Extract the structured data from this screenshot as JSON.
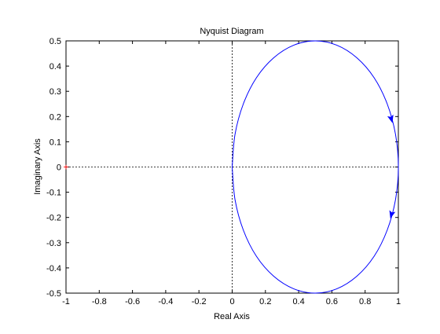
{
  "chart_data": {
    "type": "line",
    "title": "Nyquist Diagram",
    "x_label": "Real Axis",
    "y_label": "Imaginary Axis",
    "series": [
      {
        "color": "#0000ff",
        "x": [
          0,
          0.017,
          0.067,
          0.146,
          0.25,
          0.371,
          0.5,
          0.629,
          0.75,
          0.854,
          0.933,
          0.983,
          1,
          0.983,
          0.933,
          0.854,
          0.75,
          0.629,
          0.5,
          0.371,
          0.25,
          0.146,
          0.067,
          0.017,
          0
        ],
        "values": [
          0,
          0.129,
          0.25,
          0.354,
          0.433,
          0.483,
          0.5,
          0.483,
          0.433,
          0.354,
          0.25,
          0.129,
          0,
          -0.129,
          -0.25,
          -0.354,
          -0.433,
          -0.483,
          -0.5,
          -0.483,
          -0.433,
          -0.354,
          -0.25,
          -0.129,
          0
        ]
      }
    ],
    "xlim": [
      -1,
      1
    ],
    "xticks": [
      -1,
      -0.8,
      -0.6,
      -0.4,
      -0.2,
      0,
      0.2,
      0.4,
      0.6,
      0.8,
      1
    ],
    "ylim": [
      -0.5,
      0.5
    ],
    "yticks": [
      -0.5,
      -0.4,
      -0.3,
      -0.2,
      -0.1,
      0,
      0.1,
      0.2,
      0.3,
      0.4,
      0.5
    ],
    "reference_lines": {
      "x": 0,
      "y": 0
    },
    "critical_point": {
      "x": -1,
      "y": 0,
      "color": "#ff0000"
    }
  }
}
